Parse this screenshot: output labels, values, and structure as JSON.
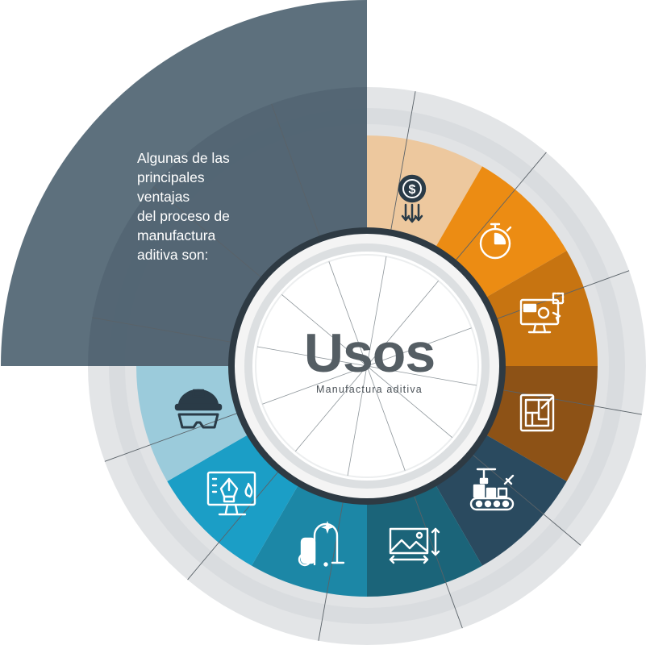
{
  "intro": {
    "lines": [
      "Algunas de las",
      "principales",
      "ventajas",
      "del proceso de",
      "manufactura",
      "aditiva son:"
    ]
  },
  "center": {
    "title": "Usos",
    "subtitle": "Manufactura aditiva"
  },
  "segments": [
    {
      "icon": "dollar-gear-cost-icon",
      "color": "#edc89e"
    },
    {
      "icon": "stopwatch-icon",
      "color": "#ec8c13"
    },
    {
      "icon": "monitor-design-icon",
      "color": "#c77411"
    },
    {
      "icon": "blueprint-plan-icon",
      "color": "#8d5216"
    },
    {
      "icon": "production-line-icon",
      "color": "#2a4a5f"
    },
    {
      "icon": "image-resize-icon",
      "color": "#1b6479"
    },
    {
      "icon": "vacuum-cleaner-icon",
      "color": "#1c87a6"
    },
    {
      "icon": "screen-design-pen-icon",
      "color": "#1b9ec6"
    },
    {
      "icon": "safety-helmet-goggles-icon",
      "color": "#9bcbdb"
    }
  ],
  "colors": {
    "panel": "#4f6472",
    "outer_ring": "#e1e3e5",
    "inner_ring": "#cdd0d3",
    "center_text": "#555e64"
  }
}
